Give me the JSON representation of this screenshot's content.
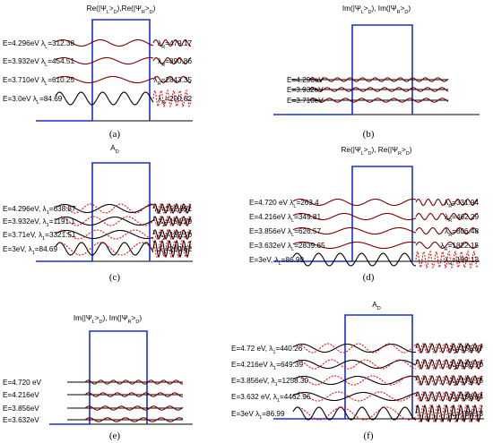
{
  "colors": {
    "barrier": "#1a2fd6",
    "dark_red": "#7a0000",
    "red": "#e01010",
    "black": "#000000"
  },
  "figure": {
    "panels": [
      {
        "id": "a",
        "label": "(a)",
        "header": "Re(|Ψ_L>_D),Re(|Ψ_R>_D)",
        "bottom_label": "A_D",
        "style": "single",
        "left_labels": [
          "E=4.296eV  λ_L=312.38",
          "E=3.932eV  λ_L=454.51",
          "E=3.710eV  λ_L=610.25",
          "E=3.0eV  λ_L=84.69"
        ],
        "right_labels": [
          "λ_R=479.17",
          "λ_R=890.86",
          "λ_R=2843.35",
          "λ_R=200.62"
        ]
      },
      {
        "id": "b",
        "label": "(b)",
        "header": "Im(|Ψ_L>_D), Im(|Ψ_R>_D)",
        "style": "im",
        "left_labels": [
          "E=4.296eV",
          "E=3.932eV",
          "E=3.710eV"
        ],
        "right_labels": []
      },
      {
        "id": "c",
        "label": "(c)",
        "header": "",
        "style": "double",
        "left_labels": [
          "E=4.296eV, λ_1=638.87",
          "E=3.932eV, λ_1=1191.1",
          "E=3.71eV, λ_1=3321.51",
          "E=3eV, λ_1=84.69"
        ],
        "right_labels": [
          "λ_2=152.691",
          "λ_2=154.29",
          "λ_2=132.10",
          "λ_2=200.62"
        ]
      },
      {
        "id": "d",
        "label": "(d)",
        "header": "Re(|Ψ_L>_D), Re(|Ψ_R>_D)",
        "style": "single",
        "left_labels": [
          "E=4.720 eV  λ_L=263.4",
          "E=4.216eV  λ_L=349.81",
          "E=3.856eV  λ_L=626.57",
          "E=3.632eV  λ_L=2839.65",
          "E=3eV,  λ_L=86.99"
        ],
        "right_labels": [
          "λ_R=331.94",
          "λ_R=462.29",
          "λ_R=806.48",
          "λ_R=1822.15",
          "λ_R=199.13"
        ]
      },
      {
        "id": "e",
        "label": "(e)",
        "header": "Im(|Ψ_L>_D), Im(|Ψ_R>_D)",
        "style": "im",
        "left_labels": [
          "E=4.720 eV",
          "E=4.216eV",
          "E=3.856eV",
          "E=3.632eV"
        ],
        "right_labels": []
      },
      {
        "id": "f",
        "label": "(f)",
        "header": "A_D",
        "style": "double",
        "left_labels": [
          "E=4.72 eV, λ_1=440.26",
          "E=4.216eV  λ_1=649.39",
          "E=3.856eV, λ_1=1258.30",
          "E=3.632 eV, λ_1=4462.96",
          "E=3eV  λ_1=86.99"
        ],
        "right_labels": [
          "λ_2=155.07",
          "λ_2=162.70",
          "λ_2=174.75",
          "λ_2=198.84",
          "λ_2=199.13"
        ]
      }
    ]
  }
}
